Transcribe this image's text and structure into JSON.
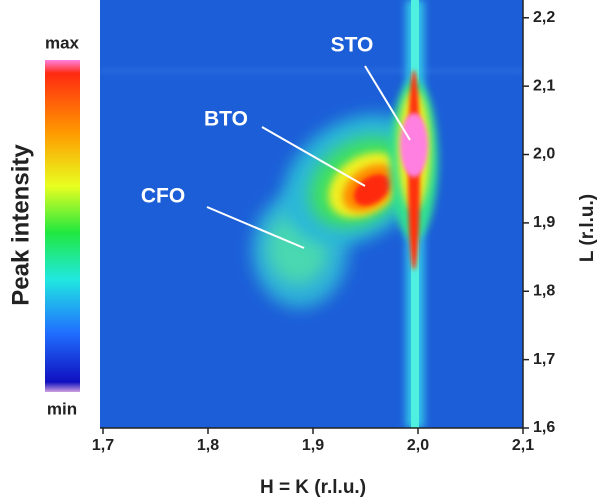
{
  "chart_data": {
    "type": "heatmap",
    "xlabel": "H = K (r.l.u.)",
    "ylabel": "L (r.l.u.)",
    "xlim": [
      1.7,
      2.1
    ],
    "ylim": [
      1.6,
      2.226
    ],
    "xticks": [
      {
        "value": 1.7,
        "label": "1,7"
      },
      {
        "value": 1.8,
        "label": "1,8"
      },
      {
        "value": 1.9,
        "label": "1,9"
      },
      {
        "value": 2.0,
        "label": "2,0"
      },
      {
        "value": 2.1,
        "label": "2,1"
      }
    ],
    "yticks": [
      {
        "value": 1.6,
        "label": "1,6"
      },
      {
        "value": 1.7,
        "label": "1,7"
      },
      {
        "value": 1.8,
        "label": "1,8"
      },
      {
        "value": 1.9,
        "label": "1,9"
      },
      {
        "value": 2.0,
        "label": "2,0"
      },
      {
        "value": 2.1,
        "label": "2,1"
      },
      {
        "value": 2.2,
        "label": "2,2"
      }
    ],
    "annotations": [
      "STO",
      "BTO",
      "CFO"
    ],
    "colorbar": {
      "label": "Peak intensity",
      "max_label": "max",
      "min_label": "min"
    }
  }
}
